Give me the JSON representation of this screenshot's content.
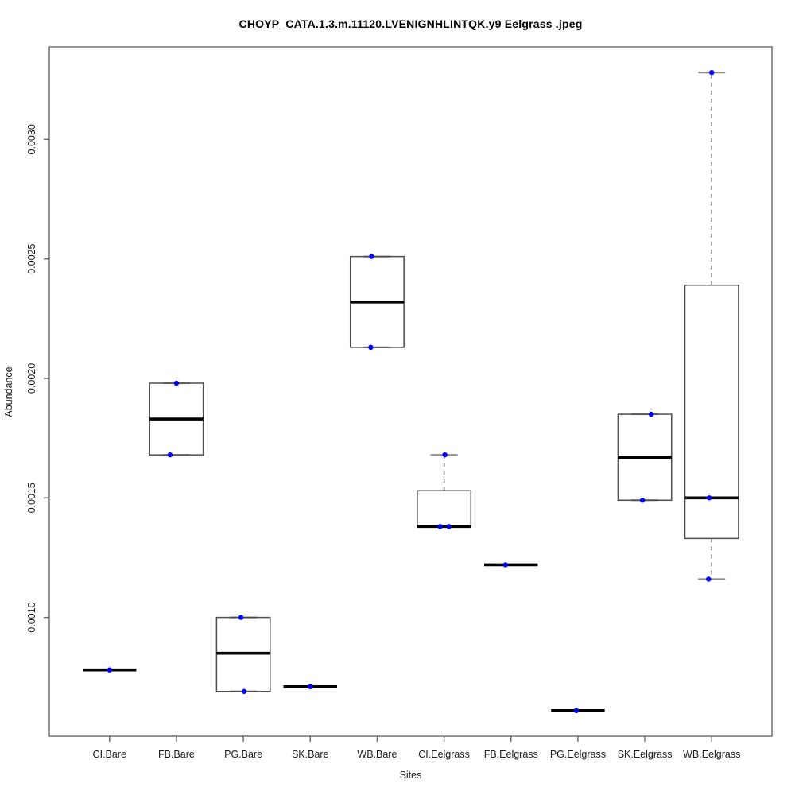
{
  "chart_data": {
    "type": "boxplot",
    "title": "CHOYP_CATA.1.3.m.11120.LVENIGNHLINTQK.y9 Eelgrass .jpeg",
    "xlabel": "Sites",
    "ylabel": "Abundance",
    "ylim": [
      0.000503,
      0.003387
    ],
    "xlim": [
      0.1,
      10.9
    ],
    "yticks": [
      0.001,
      0.0015,
      0.002,
      0.0025,
      0.003
    ],
    "ytick_labels": [
      "0.0010",
      "0.0015",
      "0.0020",
      "0.0025",
      "0.0030"
    ],
    "categories": [
      "CI.Bare",
      "FB.Bare",
      "PG.Bare",
      "SK.Bare",
      "WB.Bare",
      "CI.Eelgrass",
      "FB.Eelgrass",
      "PG.Eelgrass",
      "SK.Eelgrass",
      "WB.Eelgrass"
    ],
    "grid": false,
    "legend": null,
    "boxes": [
      {
        "label": "CI.Bare",
        "low": 0.00078,
        "q1": 0.00078,
        "median": 0.00078,
        "q3": 0.00078,
        "high": 0.00078,
        "points": [
          {
            "v": 0.00078,
            "dx": 0
          }
        ]
      },
      {
        "label": "FB.Bare",
        "low": 0.00168,
        "q1": 0.00168,
        "median": 0.00183,
        "q3": 0.00198,
        "high": 0.00198,
        "points": [
          {
            "v": 0.00198,
            "dx": 0
          },
          {
            "v": 0.00168,
            "dx": -8
          }
        ]
      },
      {
        "label": "PG.Bare",
        "low": 0.00069,
        "q1": 0.00069,
        "median": 0.00085,
        "q3": 0.001,
        "high": 0.001,
        "points": [
          {
            "v": 0.001,
            "dx": -3
          },
          {
            "v": 0.00069,
            "dx": 1
          }
        ]
      },
      {
        "label": "SK.Bare",
        "low": 0.00071,
        "q1": 0.00071,
        "median": 0.00071,
        "q3": 0.00071,
        "high": 0.00071,
        "points": [
          {
            "v": 0.00071,
            "dx": 0
          }
        ]
      },
      {
        "label": "WB.Bare",
        "low": 0.00213,
        "q1": 0.00213,
        "median": 0.00232,
        "q3": 0.00251,
        "high": 0.00251,
        "points": [
          {
            "v": 0.00251,
            "dx": -7
          },
          {
            "v": 0.00213,
            "dx": -8
          }
        ]
      },
      {
        "label": "CI.Eelgrass",
        "low": 0.00138,
        "q1": 0.00138,
        "median": 0.00138,
        "q3": 0.00153,
        "high": 0.00168,
        "points": [
          {
            "v": 0.00168,
            "dx": 1
          },
          {
            "v": 0.00138,
            "dx": -5
          },
          {
            "v": 0.00138,
            "dx": 6
          }
        ]
      },
      {
        "label": "FB.Eelgrass",
        "low": 0.00122,
        "q1": 0.00122,
        "median": 0.00122,
        "q3": 0.00122,
        "high": 0.00122,
        "points": [
          {
            "v": 0.00122,
            "dx": -7
          }
        ]
      },
      {
        "label": "PG.Eelgrass",
        "low": 0.00061,
        "q1": 0.00061,
        "median": 0.00061,
        "q3": 0.00061,
        "high": 0.00061,
        "points": [
          {
            "v": 0.00061,
            "dx": -2
          }
        ]
      },
      {
        "label": "SK.Eelgrass",
        "low": 0.00149,
        "q1": 0.00149,
        "median": 0.00167,
        "q3": 0.00185,
        "high": 0.00185,
        "points": [
          {
            "v": 0.00185,
            "dx": 8
          },
          {
            "v": 0.00149,
            "dx": -3
          }
        ]
      },
      {
        "label": "WB.Eelgrass",
        "low": 0.00116,
        "q1": 0.00133,
        "median": 0.0015,
        "q3": 0.00239,
        "high": 0.00328,
        "points": [
          {
            "v": 0.00328,
            "dx": 0
          },
          {
            "v": 0.0015,
            "dx": -3
          },
          {
            "v": 0.00116,
            "dx": -4
          }
        ]
      }
    ],
    "colors": {
      "point": "#0000ff",
      "box_border": "#4d4d4d",
      "median": "#000000",
      "whisker": "#3d3d3d",
      "staple": "#8f8f8f",
      "axis": "#666666",
      "text": "#1a1a1a"
    }
  }
}
